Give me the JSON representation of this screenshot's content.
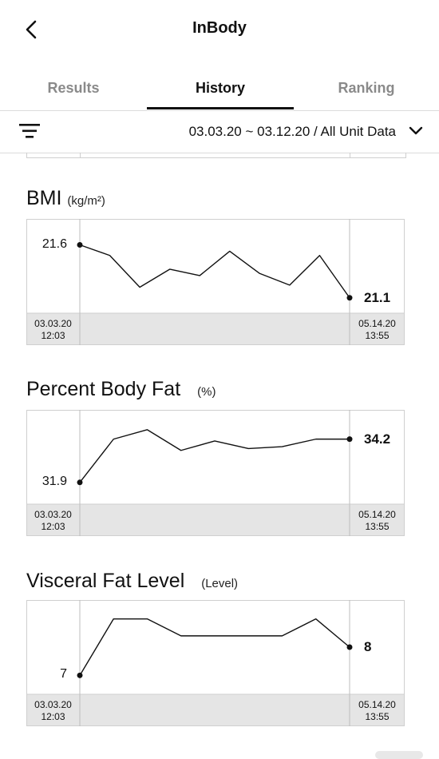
{
  "header": {
    "title": "InBody"
  },
  "tabs": [
    {
      "label": "Results",
      "active": false
    },
    {
      "label": "History",
      "active": true
    },
    {
      "label": "Ranking",
      "active": false
    }
  ],
  "filter": {
    "range_label": "03.03.20 ~ 03.12.20 / All Unit Data"
  },
  "colors": {
    "grid": "#cfcfcf",
    "line": "#111111",
    "date_band": "#e5e5e5"
  },
  "charts": [
    {
      "title": "BMI",
      "unit": "(kg/m²)",
      "start_label": "21.6",
      "end_label": "21.1",
      "start_date": "03.03.20",
      "start_time": "12:03",
      "end_date": "05.14.20",
      "end_time": "13:55",
      "values": [
        21.6,
        21.5,
        21.2,
        21.37,
        21.31,
        21.54,
        21.33,
        21.22,
        21.5,
        21.1
      ],
      "ylim": [
        21.0,
        21.8
      ]
    },
    {
      "title": "Percent Body Fat",
      "unit": "(%)",
      "start_label": "31.9",
      "end_label": "34.2",
      "start_date": "03.03.20",
      "start_time": "12:03",
      "end_date": "05.14.20",
      "end_time": "13:55",
      "values": [
        31.9,
        34.2,
        34.7,
        33.6,
        34.1,
        33.7,
        33.8,
        34.2,
        34.2
      ],
      "ylim": [
        31.0,
        35.5
      ]
    },
    {
      "title": "Visceral Fat Level",
      "unit": "(Level)",
      "start_label": "7",
      "end_label": "8",
      "start_date": "03.03.20",
      "start_time": "12:03",
      "end_date": "05.14.20",
      "end_time": "13:55",
      "values": [
        7,
        9,
        9,
        8.4,
        8.4,
        8.4,
        8.4,
        9,
        8
      ],
      "ylim": [
        6.5,
        9.5
      ]
    }
  ]
}
